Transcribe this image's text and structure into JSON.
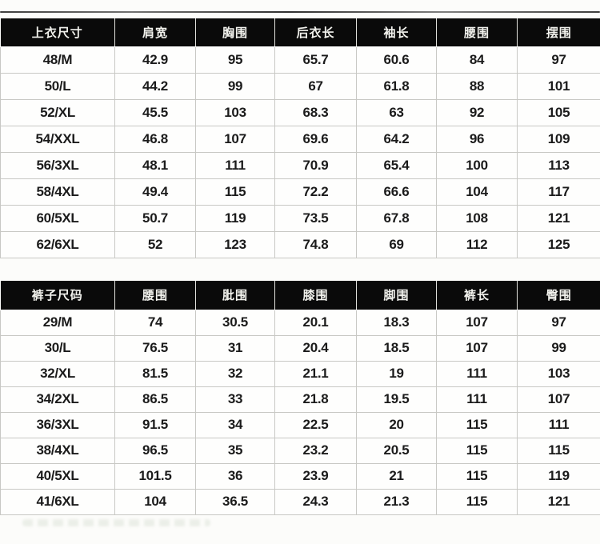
{
  "colors": {
    "header_bg": "#0a0a0a",
    "header_text": "#f2f2ed",
    "body_text": "#1b1b1b",
    "grid_line": "#c8c8c4",
    "page_bg": "#fcfcfa"
  },
  "tables": [
    {
      "name": "tops-size-chart",
      "headers": [
        "上衣尺寸",
        "肩宽",
        "胸围",
        "后衣长",
        "袖长",
        "腰围",
        "摆围"
      ],
      "rows": [
        [
          "48/M",
          "42.9",
          "95",
          "65.7",
          "60.6",
          "84",
          "97"
        ],
        [
          "50/L",
          "44.2",
          "99",
          "67",
          "61.8",
          "88",
          "101"
        ],
        [
          "52/XL",
          "45.5",
          "103",
          "68.3",
          "63",
          "92",
          "105"
        ],
        [
          "54/XXL",
          "46.8",
          "107",
          "69.6",
          "64.2",
          "96",
          "109"
        ],
        [
          "56/3XL",
          "48.1",
          "111",
          "70.9",
          "65.4",
          "100",
          "113"
        ],
        [
          "58/4XL",
          "49.4",
          "115",
          "72.2",
          "66.6",
          "104",
          "117"
        ],
        [
          "60/5XL",
          "50.7",
          "119",
          "73.5",
          "67.8",
          "108",
          "121"
        ],
        [
          "62/6XL",
          "52",
          "123",
          "74.8",
          "69",
          "112",
          "125"
        ]
      ]
    },
    {
      "name": "pants-size-chart",
      "headers": [
        "裤子尺码",
        "腰围",
        "肶围",
        "膝围",
        "脚围",
        "裤长",
        "臀围"
      ],
      "rows": [
        [
          "29/M",
          "74",
          "30.5",
          "20.1",
          "18.3",
          "107",
          "97"
        ],
        [
          "30/L",
          "76.5",
          "31",
          "20.4",
          "18.5",
          "107",
          "99"
        ],
        [
          "32/XL",
          "81.5",
          "32",
          "21.1",
          "19",
          "111",
          "103"
        ],
        [
          "34/2XL",
          "86.5",
          "33",
          "21.8",
          "19.5",
          "111",
          "107"
        ],
        [
          "36/3XL",
          "91.5",
          "34",
          "22.5",
          "20",
          "115",
          "111"
        ],
        [
          "38/4XL",
          "96.5",
          "35",
          "23.2",
          "20.5",
          "115",
          "115"
        ],
        [
          "40/5XL",
          "101.5",
          "36",
          "23.9",
          "21",
          "115",
          "119"
        ],
        [
          "41/6XL",
          "104",
          "36.5",
          "24.3",
          "21.3",
          "115",
          "121"
        ]
      ]
    }
  ]
}
